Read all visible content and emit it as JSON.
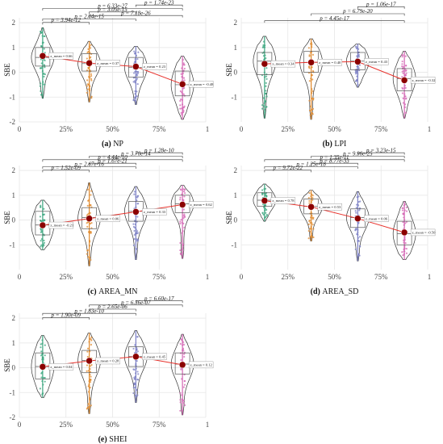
{
  "figure": {
    "y_label": "SBE",
    "x_tick_labels": [
      "0",
      "25%",
      "50%",
      "75%",
      "1"
    ]
  },
  "colors": {
    "group_1": "#3aa57e",
    "group_2": "#e08a2c",
    "group_3": "#7b7fc4",
    "group_4": "#d466b4",
    "mean_point": "#8b0000",
    "trend_line": "#e8322c",
    "bracket": "#333333",
    "grid": "#e6e6e6"
  },
  "chart_data": [
    {
      "type": "violin",
      "caption_bold": "(a)",
      "caption": "NP",
      "x_positions": [
        0.125,
        0.375,
        0.625,
        0.875
      ],
      "xlim": [
        0,
        1
      ],
      "ylim": [
        -2,
        2.2
      ],
      "y_ticks": [
        -2,
        -1,
        0,
        1,
        2
      ],
      "means": [
        0.66,
        0.37,
        0.23,
        -0.48
      ],
      "mean_labels": [
        "z_mean = 0.66",
        "z_mean = 0.37",
        "z_mean = 0.23",
        "z_mean = -0.48"
      ],
      "violins": [
        {
          "min": -1.05,
          "q1": 0.25,
          "median": 0.6,
          "q3": 1.0,
          "max": 1.8
        },
        {
          "min": -1.2,
          "q1": 0.05,
          "median": 0.35,
          "q3": 0.75,
          "max": 1.25
        },
        {
          "min": -1.3,
          "q1": -0.2,
          "median": 0.2,
          "q3": 0.6,
          "max": 1.05
        },
        {
          "min": -1.9,
          "q1": -0.95,
          "median": -0.5,
          "q3": 0.05,
          "max": 0.65
        }
      ],
      "comparisons": [
        {
          "label": "p = 3.94e-12",
          "from": 0,
          "to": 1
        },
        {
          "label": "p = 2.04e-15",
          "from": 0,
          "to": 2
        },
        {
          "label": "p = 7.18e-26",
          "from": 1,
          "to": 3
        },
        {
          "label": "p = 3.05e-15",
          "from": 1,
          "to": 2
        },
        {
          "label": "p = 6.33e-27",
          "from": 0,
          "to": 3
        },
        {
          "label": "p = 1.74e-23",
          "from": 2,
          "to": 3
        }
      ]
    },
    {
      "type": "violin",
      "caption_bold": "(b)",
      "caption": "LPI",
      "x_positions": [
        0.125,
        0.375,
        0.625,
        0.875
      ],
      "xlim": [
        0,
        1
      ],
      "ylim": [
        -2,
        2.2
      ],
      "y_ticks": [
        -1,
        0,
        1,
        2
      ],
      "means": [
        0.34,
        0.4,
        0.43,
        -0.32
      ],
      "mean_labels": [
        "z_mean = 0.34",
        "z_mean = 0.40",
        "z_mean = 0.43",
        "z_mean = -0.32"
      ],
      "violins": [
        {
          "min": -1.85,
          "q1": -0.1,
          "median": 0.45,
          "q3": 0.8,
          "max": 1.45
        },
        {
          "min": -1.9,
          "q1": 0.0,
          "median": 0.4,
          "q3": 0.85,
          "max": 1.35
        },
        {
          "min": -0.6,
          "q1": 0.1,
          "median": 0.45,
          "q3": 0.8,
          "max": 1.15
        },
        {
          "min": -1.85,
          "q1": -0.75,
          "median": -0.25,
          "q3": 0.15,
          "max": 0.85
        }
      ],
      "comparisons": [
        {
          "label": "p = 4.45e-17",
          "from": 0,
          "to": 3
        },
        {
          "label": "p = 6.79e-20",
          "from": 1,
          "to": 3
        },
        {
          "label": "p = 1.06e-17",
          "from": 2,
          "to": 3
        }
      ]
    },
    {
      "type": "violin",
      "caption_bold": "(c)",
      "caption": "AREA_MN",
      "x_positions": [
        0.125,
        0.375,
        0.625,
        0.875
      ],
      "xlim": [
        0,
        1
      ],
      "ylim": [
        -2,
        2.2
      ],
      "y_ticks": [
        -1,
        0,
        1,
        2
      ],
      "means": [
        -0.21,
        0.06,
        0.33,
        0.62
      ],
      "mean_labels": [
        "z_mean = -0.21",
        "z_mean = 0.06",
        "z_mean = 0.33",
        "z_mean = 0.62"
      ],
      "violins": [
        {
          "min": -1.2,
          "q1": -0.6,
          "median": -0.2,
          "q3": 0.35,
          "max": 0.8
        },
        {
          "min": -1.85,
          "q1": -0.35,
          "median": 0.1,
          "q3": 0.5,
          "max": 1.5
        },
        {
          "min": -1.6,
          "q1": -0.05,
          "median": 0.35,
          "q3": 0.75,
          "max": 1.35
        },
        {
          "min": -1.55,
          "q1": 0.3,
          "median": 0.65,
          "q3": 1.0,
          "max": 1.4
        }
      ],
      "comparisons": [
        {
          "label": "p = 1.52e-09",
          "from": 0,
          "to": 1
        },
        {
          "label": "p = 2.67e-16",
          "from": 0,
          "to": 2
        },
        {
          "label": "p = 1.67e-21",
          "from": 1,
          "to": 2
        },
        {
          "label": "p = 4.44e-10",
          "from": 0,
          "to": 3
        },
        {
          "label": "p = 3.70e-14",
          "from": 1,
          "to": 3
        },
        {
          "label": "p = 1.28e-10",
          "from": 2,
          "to": 3
        }
      ]
    },
    {
      "type": "violin",
      "caption_bold": "(d)",
      "caption": "AREA_SD",
      "x_positions": [
        0.125,
        0.375,
        0.625,
        0.875
      ],
      "xlim": [
        0,
        1
      ],
      "ylim": [
        -2,
        2.2
      ],
      "y_ticks": [
        -1,
        0,
        1,
        2
      ],
      "means": [
        0.78,
        0.53,
        0.06,
        -0.5
      ],
      "mean_labels": [
        "z_mean = 0.78",
        "z_mean = 0.53",
        "z_mean = 0.06",
        "z_mean = -0.50"
      ],
      "violins": [
        {
          "min": -0.05,
          "q1": 0.55,
          "median": 0.8,
          "q3": 1.1,
          "max": 1.45
        },
        {
          "min": -0.85,
          "q1": 0.25,
          "median": 0.55,
          "q3": 0.85,
          "max": 1.2
        },
        {
          "min": -1.65,
          "q1": -0.3,
          "median": 0.1,
          "q3": 0.45,
          "max": 1.15
        },
        {
          "min": -1.6,
          "q1": -1.0,
          "median": -0.55,
          "q3": -0.05,
          "max": 0.75
        }
      ],
      "comparisons": [
        {
          "label": "p = 9.72e-22",
          "from": 0,
          "to": 1
        },
        {
          "label": "p = 1.25e-18",
          "from": 0,
          "to": 2
        },
        {
          "label": "p = 8.77e-33",
          "from": 1,
          "to": 2
        },
        {
          "label": "p = 1.35e-11",
          "from": 0,
          "to": 3
        },
        {
          "label": "p = 9.96e-25",
          "from": 1,
          "to": 3
        },
        {
          "label": "p = 3.23e-15",
          "from": 2,
          "to": 3
        }
      ]
    },
    {
      "type": "violin",
      "caption_bold": "(e)",
      "caption": "SHEI",
      "x_positions": [
        0.125,
        0.375,
        0.625,
        0.875
      ],
      "xlim": [
        0,
        1
      ],
      "ylim": [
        -2,
        2.2
      ],
      "y_ticks": [
        -2,
        -1,
        0,
        1,
        2
      ],
      "means": [
        0.04,
        0.28,
        0.45,
        0.12
      ],
      "mean_labels": [
        "z_mean = 0.04",
        "z_mean = 0.28",
        "z_mean = 0.45",
        "z_mean = 0.12"
      ],
      "violins": [
        {
          "min": -1.2,
          "q1": -0.45,
          "median": 0.05,
          "q3": 0.6,
          "max": 1.3
        },
        {
          "min": -1.85,
          "q1": -0.2,
          "median": 0.3,
          "q3": 0.7,
          "max": 1.4
        },
        {
          "min": -1.4,
          "q1": 0.05,
          "median": 0.45,
          "q3": 0.85,
          "max": 1.5
        },
        {
          "min": -1.9,
          "q1": -0.25,
          "median": 0.15,
          "q3": 0.6,
          "max": 1.35
        }
      ],
      "comparisons": [
        {
          "label": "p = 1.90e-09",
          "from": 0,
          "to": 1
        },
        {
          "label": "p = 1.83e-10",
          "from": 0,
          "to": 2
        },
        {
          "label": "p = 2.65e-06",
          "from": 1,
          "to": 2
        },
        {
          "label": "p = 6.36e-07",
          "from": 1,
          "to": 3
        },
        {
          "label": "p = 6.60e-17",
          "from": 2,
          "to": 3
        }
      ]
    }
  ]
}
